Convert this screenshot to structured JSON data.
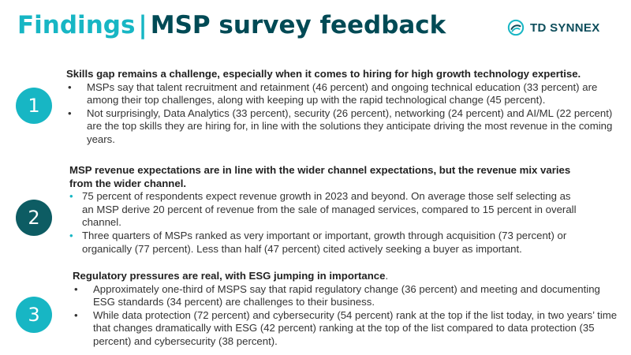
{
  "header": {
    "title_part1": "Findings",
    "separator": "|",
    "title_part2": "MSP survey feedback",
    "logo_text": "TD SYNNEX"
  },
  "colors": {
    "accent": "#17b6c4",
    "dark_teal": "#004a55",
    "circle_2": "#0d5c63"
  },
  "sections": [
    {
      "number": "1",
      "heading": "Skills gap remains a challenge, especially when it comes to hiring for high growth technology expertise.",
      "bullets": [
        "MSPs say that talent recruitment and retainment (46 percent) and ongoing technical education (33 percent) are among their top challenges, along with keeping up with the rapid technological change (45 percent).",
        "Not surprisingly, Data Analytics (33 percent), security (26 percent), networking (24 percent) and AI/ML (22 percent) are the top skills they are hiring for, in line with the solutions they anticipate driving the most revenue in the coming years."
      ]
    },
    {
      "number": "2",
      "heading": "MSP revenue expectations are in line with the wider channel expectations, but the revenue mix varies from the wider channel.",
      "bullets": [
        "75 percent of respondents expect revenue growth in 2023 and beyond. On average those self selecting as an MSP derive 20 percent of revenue from the sale of managed services, compared to 15 percent  in overall channel.",
        "Three quarters of MSPs ranked as very important or important, growth through acquisition (73 percent) or organically (77 percent). Less than half (47 percent) cited actively seeking a buyer as important."
      ]
    },
    {
      "number": "3",
      "heading": "Regulatory pressures are real, with ESG jumping in importance",
      "heading_suffix": ".",
      "bullets": [
        "Approximately one-third of MSPS say that rapid regulatory change (36 percent) and meeting and documenting ESG standards (34 percent) are challenges to their business.",
        "While data protection (72 percent) and cybersecurity (54 percent) rank at the top if the list today, in two years’ time that changes dramatically with ESG (42 percent) ranking at the top of the list compared to data protection (35 percent) and cybersecurity (38 percent)."
      ]
    }
  ]
}
